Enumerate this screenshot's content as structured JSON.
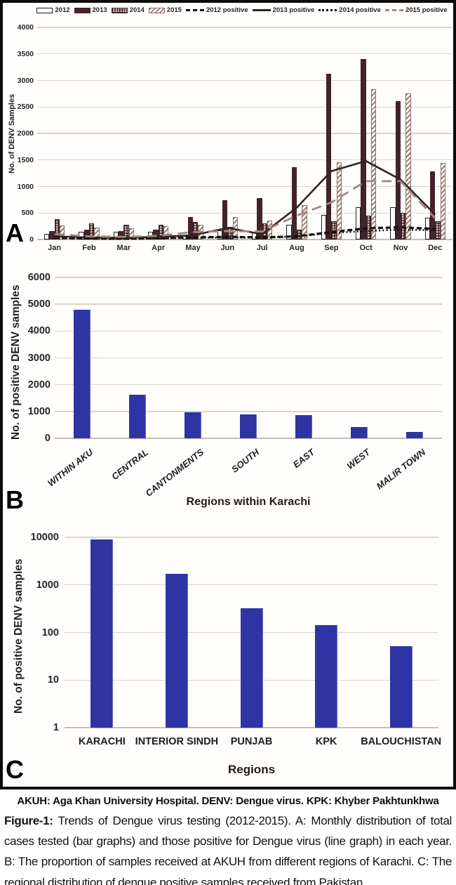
{
  "chart_data": [
    {
      "type": "bar+line",
      "panel": "A",
      "ylabel": "No. of DENV Samples",
      "ylim": [
        0,
        4000
      ],
      "ytick_step": 500,
      "ytick_labels": [
        "4000",
        "3500",
        "3000",
        "2500",
        "2000",
        "1500",
        "1000",
        "500",
        "0"
      ],
      "grid": true,
      "legend_position": "top",
      "categories": [
        "Jan",
        "Feb",
        "Mar",
        "Apr",
        "May",
        "Jun",
        "Jul",
        "Aug",
        "Sep",
        "Oct",
        "Nov",
        "Dec"
      ],
      "bar_series": [
        {
          "name": "2012",
          "style": "white-outline",
          "values": [
            110,
            140,
            140,
            140,
            60,
            170,
            150,
            280,
            460,
            610,
            610,
            410
          ]
        },
        {
          "name": "2013",
          "style": "solid-maroon",
          "values": [
            160,
            180,
            160,
            190,
            420,
            740,
            780,
            1370,
            3130,
            3400,
            2610,
            1280
          ]
        },
        {
          "name": "2014",
          "style": "crosshatch",
          "values": [
            390,
            300,
            280,
            280,
            330,
            240,
            310,
            190,
            350,
            450,
            500,
            350
          ]
        },
        {
          "name": "2015",
          "style": "diagonal-stripes",
          "values": [
            270,
            230,
            210,
            250,
            280,
            420,
            360,
            650,
            1460,
            2830,
            2760,
            1450
          ]
        }
      ],
      "line_series": [
        {
          "name": "2012 positive",
          "style": "dashed-black",
          "values": [
            30,
            20,
            15,
            25,
            40,
            50,
            40,
            60,
            140,
            210,
            230,
            200
          ]
        },
        {
          "name": "2013 positive",
          "style": "solid-black",
          "values": [
            60,
            40,
            30,
            50,
            80,
            220,
            100,
            600,
            1290,
            1480,
            1130,
            470
          ]
        },
        {
          "name": "2014 positive",
          "style": "dotted-black",
          "values": [
            25,
            15,
            10,
            20,
            30,
            40,
            35,
            60,
            120,
            160,
            185,
            175
          ]
        },
        {
          "name": "2015 positive",
          "style": "dashed-tan",
          "values": [
            100,
            60,
            50,
            70,
            140,
            160,
            150,
            450,
            700,
            1100,
            1100,
            400
          ]
        }
      ]
    },
    {
      "type": "bar",
      "panel": "B",
      "ylabel": "No. of positive DENV samples",
      "xlabel": "Regions within Karachi",
      "ylim": [
        0,
        6000
      ],
      "ytick_step": 1000,
      "ytick_labels": [
        "6000",
        "5000",
        "4000",
        "3000",
        "2000",
        "1000",
        "0"
      ],
      "grid": true,
      "categories": [
        "WITHIN AKU",
        "CENTRAL",
        "CANTONMENTS",
        "SOUTH",
        "EAST",
        "WEST",
        "MALIR TOWN"
      ],
      "values": [
        4800,
        1630,
        960,
        890,
        860,
        410,
        230
      ],
      "bar_color": "#2e34a4"
    },
    {
      "type": "bar",
      "panel": "C",
      "y_scale": "log",
      "ylabel": "No. of positive DENV samples",
      "xlabel": "Regions",
      "ylim": [
        1,
        10000
      ],
      "ytick_labels": [
        "10000",
        "1000",
        "100",
        "10",
        "1"
      ],
      "grid": true,
      "categories": [
        "KARACHI",
        "INTERIOR SINDH",
        "PUNJAB",
        "KPK",
        "BALOUCHISTAN"
      ],
      "values": [
        9000,
        1700,
        320,
        145,
        52
      ],
      "bar_color": "#2e34a4"
    }
  ],
  "caption": {
    "abbreviations": "AKUH: Aga Khan University Hospital. DENV: Dengue virus. KPK: Khyber Pakhtunkhwa",
    "figure_label": "Figure-1:",
    "figure_text": "Trends of Dengue virus testing (2012-2015). A: Monthly distribution of total cases tested (bar graphs) and those positive for Dengue virus (line graph) in each year. B: The proportion of samples received at AKUH from different regions of Karachi. C: The regional distribution of dengue positive samples received from Pakistan."
  },
  "colors": {
    "maroon": "#42242b",
    "tan_stripe": "#9c7e74",
    "blue": "#2e34a4",
    "gridline": "#dad4cb"
  }
}
